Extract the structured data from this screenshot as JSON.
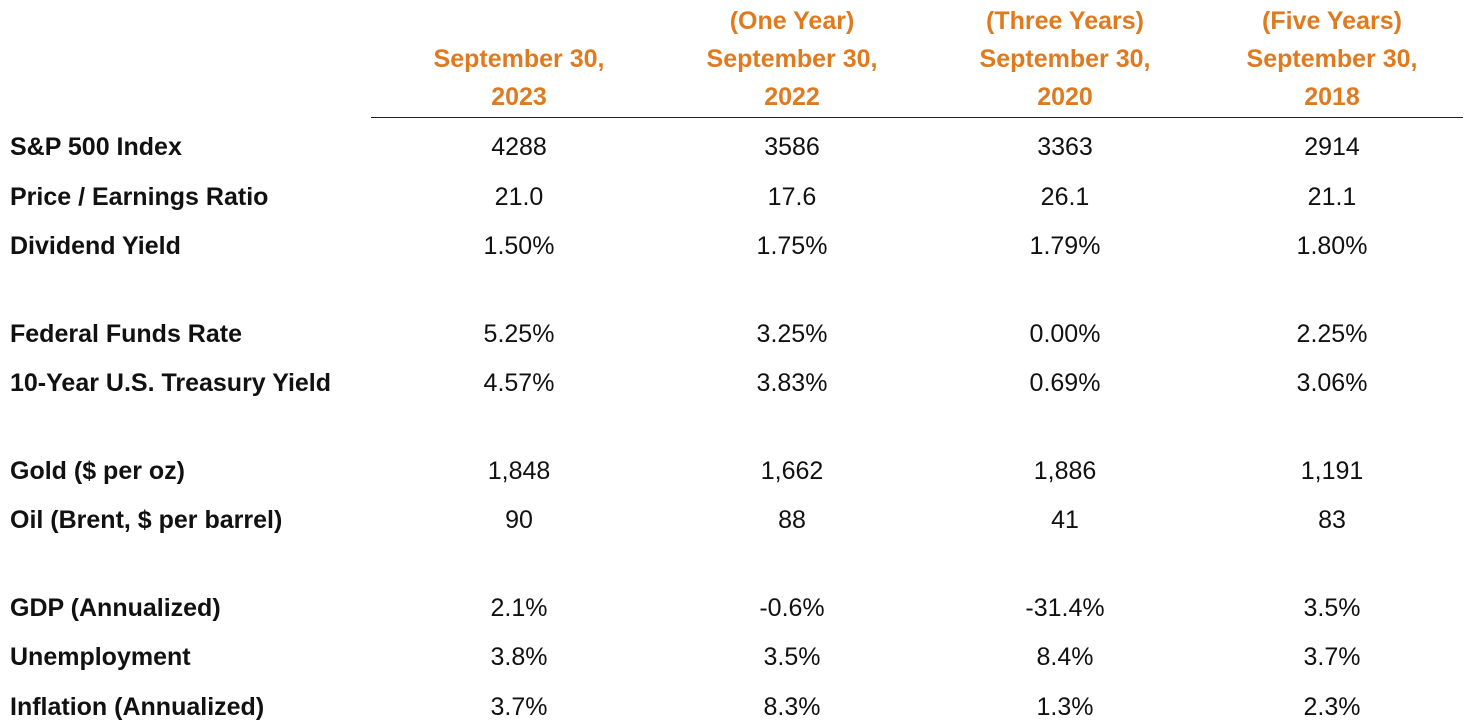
{
  "columns": [
    {
      "lines": [
        "September 30,",
        "2023"
      ]
    },
    {
      "lines": [
        "(One Year)",
        "September 30,",
        "2022"
      ]
    },
    {
      "lines": [
        "(Three Years)",
        "September 30,",
        "2020"
      ]
    },
    {
      "lines": [
        "(Five Years)",
        "September 30,",
        "2018"
      ]
    }
  ],
  "groups": [
    {
      "rows": [
        {
          "label": "S&P 500 Index",
          "values": [
            "4288",
            "3586",
            "3363",
            "2914"
          ]
        },
        {
          "label": "Price / Earnings Ratio",
          "values": [
            "21.0",
            "17.6",
            "26.1",
            "21.1"
          ]
        },
        {
          "label": "Dividend Yield",
          "values": [
            "1.50%",
            "1.75%",
            "1.79%",
            "1.80%"
          ]
        }
      ]
    },
    {
      "rows": [
        {
          "label": "Federal Funds Rate",
          "values": [
            "5.25%",
            "3.25%",
            "0.00%",
            "2.25%"
          ]
        },
        {
          "label": "10-Year U.S. Treasury Yield",
          "values": [
            "4.57%",
            "3.83%",
            "0.69%",
            "3.06%"
          ]
        }
      ]
    },
    {
      "rows": [
        {
          "label": "Gold ($ per oz)",
          "values": [
            "1,848",
            "1,662",
            "1,886",
            "1,191"
          ]
        },
        {
          "label": "Oil (Brent, $ per barrel)",
          "values": [
            "90",
            "88",
            "41",
            "83"
          ]
        }
      ]
    },
    {
      "rows": [
        {
          "label": "GDP (Annualized)",
          "values": [
            "2.1%",
            "-0.6%",
            "-31.4%",
            "3.5%"
          ]
        },
        {
          "label": "Unemployment",
          "values": [
            "3.8%",
            "3.5%",
            "8.4%",
            "3.7%"
          ]
        },
        {
          "label": "Inflation (Annualized)",
          "values": [
            "3.7%",
            "8.3%",
            "1.3%",
            "2.3%"
          ]
        }
      ]
    }
  ]
}
